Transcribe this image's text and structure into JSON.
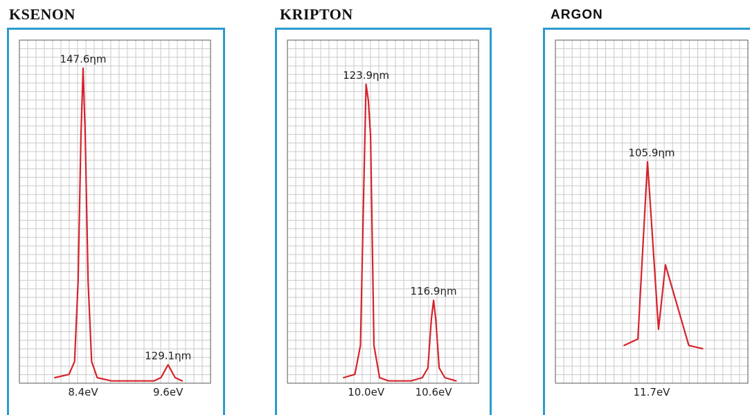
{
  "chart_data": [
    {
      "type": "line",
      "title": "KSENON",
      "curve_color": "#d6222b",
      "frame_color": "#2a9bd0",
      "grid": true,
      "xlim": [
        7.5,
        10.2
      ],
      "ylim": [
        0,
        1.0
      ],
      "x_tick_labels": [
        {
          "x": 8.4,
          "label": "8.4eV"
        },
        {
          "x": 9.6,
          "label": "9.6eV"
        }
      ],
      "peak_labels": [
        {
          "x": 8.4,
          "y": 0.96,
          "label": "147.6ηm"
        },
        {
          "x": 9.6,
          "y": 0.04,
          "label": "129.1ηm"
        }
      ],
      "series": [
        {
          "x": [
            8.0,
            8.2,
            8.28,
            8.33,
            8.37,
            8.4,
            8.43,
            8.47,
            8.52,
            8.6,
            8.8,
            9.0,
            9.2,
            9.4,
            9.5,
            9.55,
            9.6,
            9.65,
            9.7,
            9.8
          ],
          "y": [
            0.0,
            0.01,
            0.05,
            0.3,
            0.75,
            0.96,
            0.75,
            0.3,
            0.05,
            0.0,
            -0.01,
            -0.01,
            -0.01,
            -0.01,
            0.0,
            0.02,
            0.04,
            0.02,
            0.0,
            -0.01
          ]
        }
      ]
    },
    {
      "type": "line",
      "title": "KRIPTON",
      "curve_color": "#d6222b",
      "frame_color": "#2a9bd0",
      "grid": true,
      "xlim": [
        9.3,
        11.0
      ],
      "ylim": [
        0,
        1.0
      ],
      "x_tick_labels": [
        {
          "x": 10.0,
          "label": "10.0eV"
        },
        {
          "x": 10.6,
          "label": "10.6eV"
        }
      ],
      "peak_labels": [
        {
          "x": 10.0,
          "y": 0.91,
          "label": "123.9ηm"
        },
        {
          "x": 10.6,
          "y": 0.24,
          "label": "116.9ηm"
        }
      ],
      "series": [
        {
          "x": [
            9.8,
            9.9,
            9.95,
            9.98,
            10.0,
            10.02,
            10.04,
            10.07,
            10.12,
            10.2,
            10.4,
            10.5,
            10.55,
            10.58,
            10.6,
            10.62,
            10.65,
            10.7,
            10.8
          ],
          "y": [
            0.0,
            0.01,
            0.1,
            0.6,
            0.91,
            0.86,
            0.75,
            0.1,
            0.0,
            -0.01,
            -0.01,
            0.0,
            0.03,
            0.18,
            0.24,
            0.18,
            0.03,
            0.0,
            -0.01
          ]
        }
      ]
    },
    {
      "type": "line",
      "title": "ARGON",
      "curve_color": "#d6222b",
      "frame_color": "#2a9bd0",
      "grid": true,
      "xlim": [
        11.0,
        12.4
      ],
      "ylim": [
        0,
        1.0
      ],
      "x_tick_labels": [
        {
          "x": 11.7,
          "label": "11.7eV"
        }
      ],
      "peak_labels": [
        {
          "x": 11.7,
          "y": 0.67,
          "label": "105.9ηm"
        }
      ],
      "series": [
        {
          "x": [
            11.5,
            11.6,
            11.67,
            11.75,
            11.8,
            11.97,
            12.07
          ],
          "y": [
            0.1,
            0.12,
            0.67,
            0.15,
            0.35,
            0.1,
            0.09
          ]
        }
      ]
    }
  ]
}
